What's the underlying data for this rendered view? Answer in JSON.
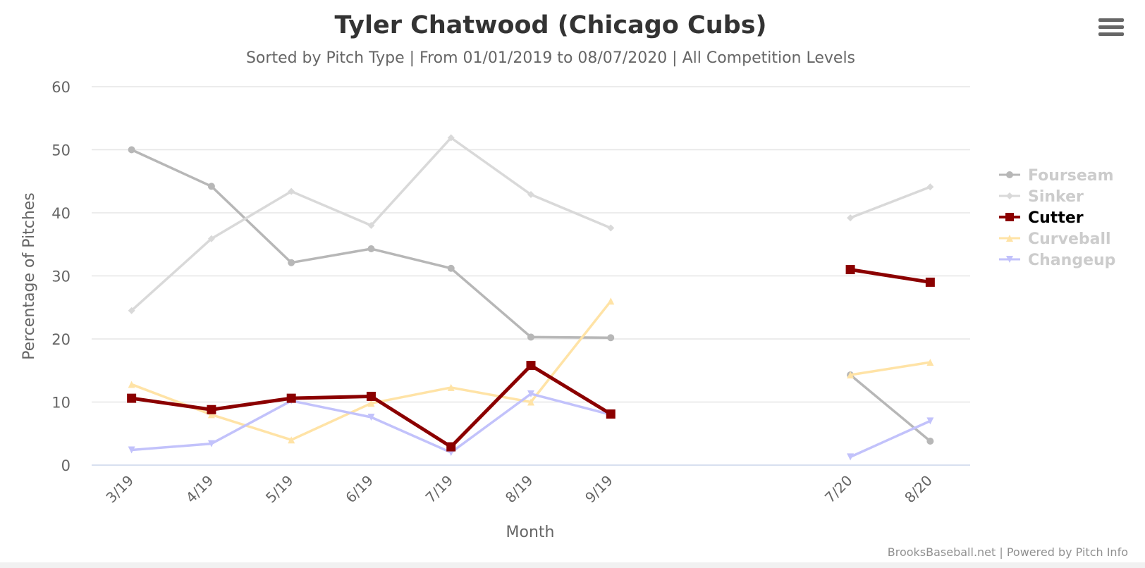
{
  "chart_data": {
    "type": "line",
    "title": "Tyler Chatwood (Chicago Cubs)",
    "subtitle": "Sorted by Pitch Type | From 01/01/2019 to 08/07/2020 | All Competition Levels",
    "xlabel": "Month",
    "ylabel": "Percentage of Pitches",
    "ylim": [
      0,
      60
    ],
    "yticks": [
      0,
      10,
      20,
      30,
      40,
      50,
      60
    ],
    "categories": [
      "3/19",
      "4/19",
      "5/19",
      "6/19",
      "7/19",
      "8/19",
      "9/19",
      "",
      "",
      "7/20",
      "8/20"
    ],
    "grid": true,
    "legend_position": "right",
    "highlighted_series": "Cutter",
    "series": [
      {
        "name": "Fourseam",
        "color": "#b7b7b7",
        "marker": "circle",
        "values": [
          50.0,
          44.2,
          32.1,
          34.3,
          31.2,
          20.3,
          20.2,
          null,
          null,
          14.3,
          3.8
        ]
      },
      {
        "name": "Sinker",
        "color": "#d9d9d9",
        "marker": "diamond",
        "values": [
          24.5,
          35.9,
          43.4,
          38.0,
          51.9,
          42.9,
          37.6,
          null,
          null,
          39.2,
          44.1
        ]
      },
      {
        "name": "Cutter",
        "color": "#8b0000",
        "marker": "square",
        "values": [
          10.6,
          8.8,
          10.6,
          10.9,
          2.9,
          15.8,
          8.1,
          null,
          null,
          31.0,
          29.0
        ]
      },
      {
        "name": "Curveball",
        "color": "#ffe3a6",
        "marker": "triangle",
        "values": [
          12.8,
          8.0,
          4.0,
          9.8,
          12.3,
          10.0,
          26.0,
          null,
          null,
          14.3,
          16.3
        ]
      },
      {
        "name": "Changeup",
        "color": "#c2c2fb",
        "marker": "triangle-down",
        "values": [
          2.4,
          3.4,
          10.2,
          7.6,
          2.0,
          11.3,
          8.0,
          null,
          null,
          1.3,
          7.0
        ]
      }
    ],
    "credit": "BrooksBaseball.net | Powered by Pitch Info"
  },
  "toolbar": {
    "menu_icon": "hamburger-menu-icon"
  }
}
